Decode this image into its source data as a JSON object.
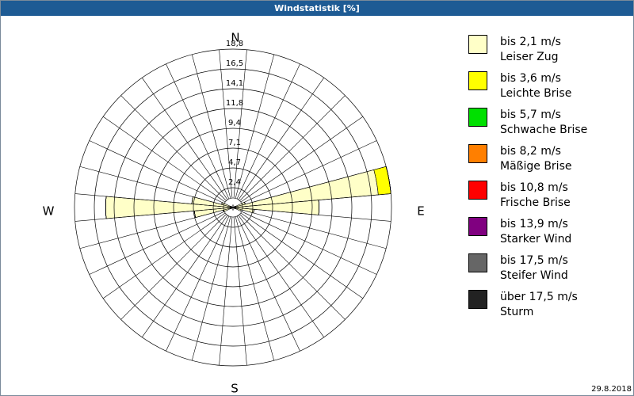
{
  "chart_data": {
    "type": "windrose",
    "title": "Windstatistik [%]",
    "date": "29.8.2018",
    "direction_labels": [
      "N",
      "E",
      "S",
      "W"
    ],
    "categories": [
      null,
      null,
      null,
      null,
      null,
      null,
      null,
      null,
      null,
      null,
      null,
      null,
      null,
      null,
      null,
      null,
      null,
      null,
      null,
      null,
      null,
      null,
      null,
      null,
      null,
      null,
      null,
      null,
      null,
      null,
      null,
      null,
      null,
      null,
      null,
      null
    ],
    "ylim": [
      0,
      18.8
    ],
    "yticks": [
      {
        "value": 2.35,
        "label": "2,4"
      },
      4.7,
      {
        "value": 7.05,
        "label": "7,1"
      },
      9.4,
      {
        "value": 11.75,
        "label": "11,8"
      },
      14.1,
      {
        "value": 16.45,
        "label": "16,5"
      },
      18.8
    ],
    "yticklabels_decimal": {
      "4.7": "4,7",
      "9.4": "9,4",
      "14.1": "14,1",
      "18.8": "18,8"
    },
    "series": [
      {
        "name": "bis 2,1 m/s",
        "description": "Leiser Zug",
        "color": "#ffffc8",
        "values": [
          0.3,
          0,
          0,
          0,
          0,
          0,
          0.3,
          1.5,
          17.3,
          10.2,
          2.5,
          1.0,
          0.3,
          0,
          0,
          0,
          0,
          0,
          0.3,
          0,
          0,
          0,
          0,
          0,
          0.3,
          1.2,
          4.6,
          15.1,
          4.9,
          1.4,
          0.3,
          0,
          0,
          0,
          0,
          0
        ]
      },
      {
        "name": "bis 3,6 m/s",
        "description": "Leichte Brise",
        "color": "#ffff00",
        "values": [
          0,
          0,
          0,
          0,
          0,
          0,
          0,
          0,
          1.5,
          0,
          0,
          0,
          0,
          0,
          0,
          0,
          0,
          0,
          0,
          0,
          0,
          0,
          0,
          0,
          0,
          0,
          0,
          0,
          0,
          0,
          0,
          0,
          0,
          0,
          0,
          0
        ]
      },
      {
        "name": "bis 5,7 m/s",
        "description": "Schwache Brise",
        "color": "#00e000",
        "values": [
          0,
          0,
          0,
          0,
          0,
          0,
          0,
          0,
          0,
          0,
          0,
          0,
          0,
          0,
          0,
          0,
          0,
          0,
          0,
          0,
          0,
          0,
          0,
          0,
          0,
          0,
          0,
          0,
          0,
          0,
          0,
          0,
          0,
          0,
          0,
          0
        ]
      },
      {
        "name": "bis 8,2 m/s",
        "description": "Mäßige Brise",
        "color": "#ff7f00",
        "values": [
          0,
          0,
          0,
          0,
          0,
          0,
          0,
          0,
          0,
          0,
          0,
          0,
          0,
          0,
          0,
          0,
          0,
          0,
          0,
          0,
          0,
          0,
          0,
          0,
          0,
          0,
          0,
          0,
          0,
          0,
          0,
          0,
          0,
          0,
          0,
          0
        ]
      },
      {
        "name": "bis 10,8 m/s",
        "description": "Frische Brise",
        "color": "#ff0000",
        "values": [
          0,
          0,
          0,
          0,
          0,
          0,
          0,
          0,
          0,
          0,
          0,
          0,
          0,
          0,
          0,
          0,
          0,
          0,
          0,
          0,
          0,
          0,
          0,
          0,
          0,
          0,
          0,
          0,
          0,
          0,
          0,
          0,
          0,
          0,
          0,
          0
        ]
      },
      {
        "name": "bis 13,9 m/s",
        "description": "Starker Wind",
        "color": "#800080",
        "values": [
          0,
          0,
          0,
          0,
          0,
          0,
          0,
          0,
          0,
          0,
          0,
          0,
          0,
          0,
          0,
          0,
          0,
          0,
          0,
          0,
          0,
          0,
          0,
          0,
          0,
          0,
          0,
          0,
          0,
          0,
          0,
          0,
          0,
          0,
          0,
          0
        ]
      },
      {
        "name": "bis 17,5 m/s",
        "description": "Steifer Wind",
        "color": "#666666",
        "values": [
          0,
          0,
          0,
          0,
          0,
          0,
          0,
          0,
          0,
          0,
          0,
          0,
          0,
          0,
          0,
          0,
          0,
          0,
          0,
          0,
          0,
          0,
          0,
          0,
          0,
          0,
          0,
          0,
          0,
          0,
          0,
          0,
          0,
          0,
          0,
          0
        ]
      },
      {
        "name": "über 17,5 m/s",
        "description": "Sturm",
        "color": "#222222",
        "values": [
          0,
          0,
          0,
          0,
          0,
          0,
          0,
          0,
          0,
          0,
          0,
          0,
          0,
          0,
          0,
          0,
          0,
          0,
          0,
          0,
          0,
          0,
          0,
          0,
          0,
          0,
          0,
          0,
          0,
          0,
          0,
          0,
          0,
          0,
          0,
          0
        ]
      }
    ]
  }
}
